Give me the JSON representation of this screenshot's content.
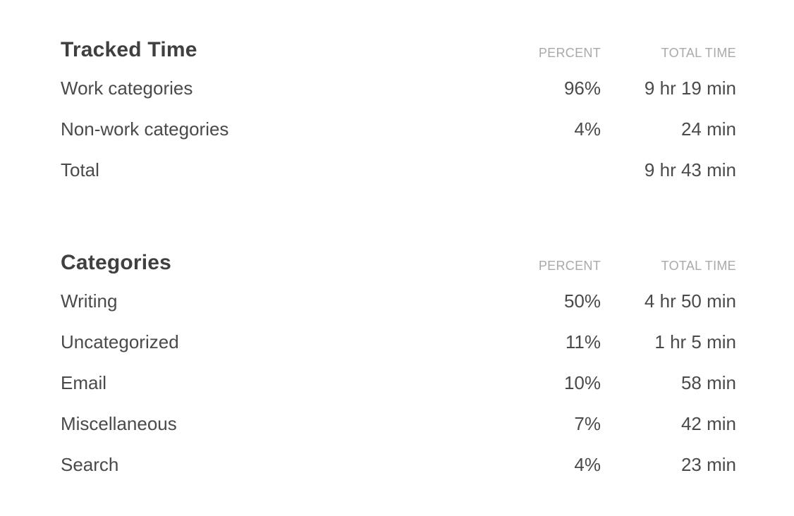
{
  "tracked_time": {
    "title": "Tracked Time",
    "percent_header": "PERCENT",
    "total_time_header": "TOTAL TIME",
    "rows": [
      {
        "label": "Work categories",
        "percent": "96%",
        "total_time": "9 hr 19 min"
      },
      {
        "label": "Non-work categories",
        "percent": "4%",
        "total_time": "24 min"
      },
      {
        "label": "Total",
        "percent": "",
        "total_time": "9 hr 43 min"
      }
    ]
  },
  "categories": {
    "title": "Categories",
    "percent_header": "PERCENT",
    "total_time_header": "TOTAL TIME",
    "rows": [
      {
        "label": "Writing",
        "percent": "50%",
        "total_time": "4 hr 50 min"
      },
      {
        "label": "Uncategorized",
        "percent": "11%",
        "total_time": "1 hr 5 min"
      },
      {
        "label": "Email",
        "percent": "10%",
        "total_time": "58 min"
      },
      {
        "label": "Miscellaneous",
        "percent": "7%",
        "total_time": "42 min"
      },
      {
        "label": "Search",
        "percent": "4%",
        "total_time": "23 min"
      }
    ]
  }
}
